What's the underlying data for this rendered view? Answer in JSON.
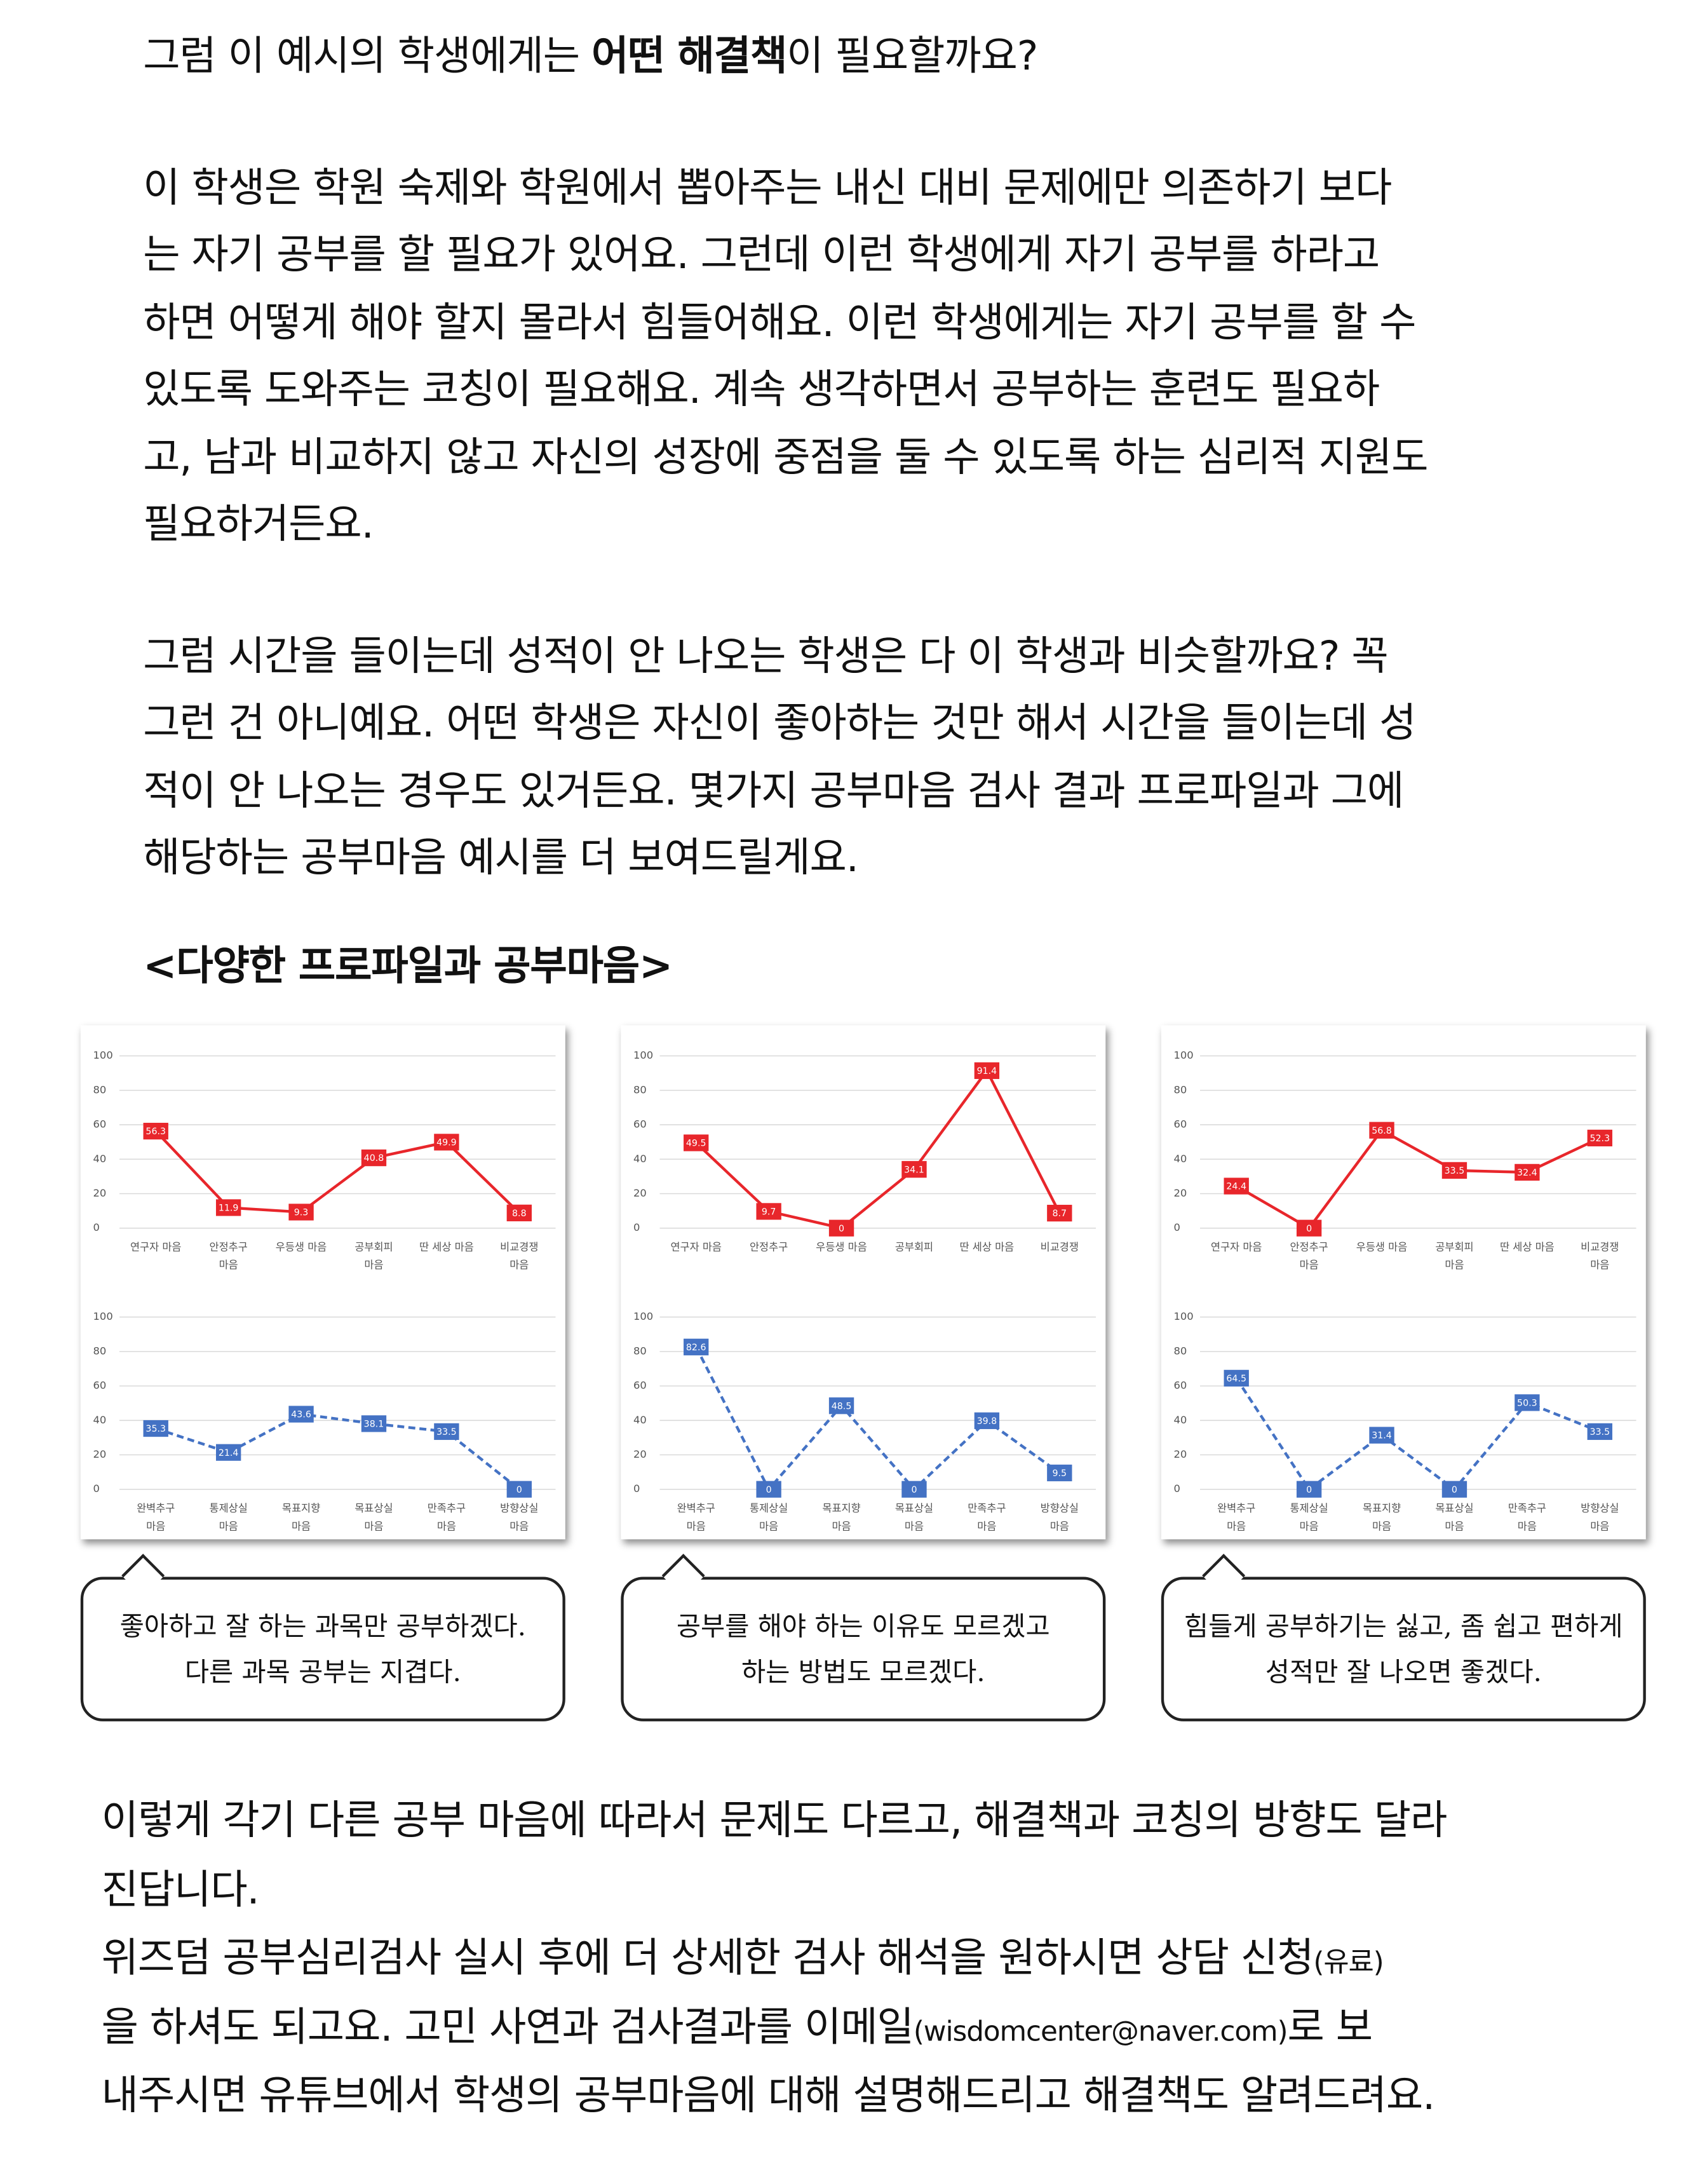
{
  "intro": {
    "before": "그럼 이 예시의 학생에게는 ",
    "bold": "어떤 해결책",
    "after": "이 필요할까요?"
  },
  "paragraph1": [
    "이 학생은 학원 숙제와 학원에서 뽑아주는 내신 대비 문제에만 의존하기 보다",
    "는 자기 공부를 할 필요가 있어요. 그런데 이런 학생에게 자기 공부를 하라고",
    "하면 어떻게 해야 할지 몰라서 힘들어해요. 이런 학생에게는 자기 공부를 할 수",
    "있도록 도와주는 코칭이 필요해요. 계속 생각하면서 공부하는 훈련도 필요하",
    "고, 남과 비교하지 않고 자신의 성장에 중점을 둘 수 있도록 하는 심리적 지원도",
    "필요하거든요."
  ],
  "paragraph2": [
    "그럼 시간을 들이는데 성적이 안 나오는 학생은 다 이 학생과 비슷할까요? 꼭",
    "그런 건 아니예요. 어떤 학생은 자신이 좋아하는 것만 해서 시간을 들이는데 성",
    "적이 안 나오는 경우도 있거든요. 몇가지 공부마음 검사 결과 프로파일과 그에",
    "해당하는 공부마음 예시를 더 보여드릴게요."
  ],
  "heading": "<다양한 프로파일과 공부마음>",
  "chart_data": [
    {
      "type": "line",
      "categories": [
        [
          "연구자 마음"
        ],
        [
          "안정추구",
          "마음"
        ],
        [
          "우등생 마음"
        ],
        [
          "공부회피",
          "마음"
        ],
        [
          "딴 세상 마음"
        ],
        [
          "비교경쟁",
          "마음"
        ]
      ],
      "series": [
        {
          "color": "#e8262b",
          "dashed": false,
          "values": [
            56.3,
            11.9,
            9.3,
            40.8,
            49.9,
            8.8
          ]
        }
      ],
      "ylim": [
        0,
        100
      ],
      "yticks": [
        0,
        20,
        40,
        60,
        80,
        100
      ],
      "grid": true
    },
    {
      "type": "line",
      "categories": [
        [
          "완벽추구",
          "마음"
        ],
        [
          "통제상실",
          "마음"
        ],
        [
          "목표지향",
          "마음"
        ],
        [
          "목표상실",
          "마음"
        ],
        [
          "만족추구",
          "마음"
        ],
        [
          "방향상실",
          "마음"
        ]
      ],
      "series": [
        {
          "color": "#4472c4",
          "dashed": true,
          "values": [
            35.3,
            21.4,
            43.6,
            38.1,
            33.5,
            0
          ]
        }
      ],
      "ylim": [
        0,
        100
      ],
      "yticks": [
        0,
        20,
        40,
        60,
        80,
        100
      ],
      "grid": true
    },
    {
      "type": "line",
      "categories": [
        [
          "연구자 마음"
        ],
        [
          "안정추구"
        ],
        [
          "우등생 마음"
        ],
        [
          "공부회피"
        ],
        [
          "딴 세상 마음"
        ],
        [
          "비교경쟁"
        ]
      ],
      "series": [
        {
          "color": "#e8262b",
          "dashed": false,
          "values": [
            49.5,
            9.7,
            0,
            34.1,
            91.4,
            8.7
          ]
        }
      ],
      "ylim": [
        0,
        100
      ],
      "yticks": [
        0,
        20,
        40,
        60,
        80,
        100
      ],
      "grid": true
    },
    {
      "type": "line",
      "categories": [
        [
          "완벽추구",
          "마음"
        ],
        [
          "통제상실",
          "마음"
        ],
        [
          "목표지향",
          "마음"
        ],
        [
          "목표상실",
          "마음"
        ],
        [
          "만족추구",
          "마음"
        ],
        [
          "방향상실",
          "마음"
        ]
      ],
      "series": [
        {
          "color": "#4472c4",
          "dashed": true,
          "values": [
            82.6,
            0,
            48.5,
            0,
            39.8,
            9.5
          ]
        }
      ],
      "ylim": [
        0,
        100
      ],
      "yticks": [
        0,
        20,
        40,
        60,
        80,
        100
      ],
      "grid": true
    },
    {
      "type": "line",
      "categories": [
        [
          "연구자 마음"
        ],
        [
          "안정추구",
          "마음"
        ],
        [
          "우등생 마음"
        ],
        [
          "공부회피",
          "마음"
        ],
        [
          "딴 세상 마음"
        ],
        [
          "비교경쟁",
          "마음"
        ]
      ],
      "series": [
        {
          "color": "#e8262b",
          "dashed": false,
          "values": [
            24.4,
            0,
            56.8,
            33.5,
            32.4,
            52.3
          ]
        }
      ],
      "ylim": [
        0,
        100
      ],
      "yticks": [
        0,
        20,
        40,
        60,
        80,
        100
      ],
      "grid": true
    },
    {
      "type": "line",
      "categories": [
        [
          "완벽추구",
          "마음"
        ],
        [
          "통제상실",
          "마음"
        ],
        [
          "목표지향",
          "마음"
        ],
        [
          "목표상실",
          "마음"
        ],
        [
          "만족추구",
          "마음"
        ],
        [
          "방향상실",
          "마음"
        ]
      ],
      "series": [
        {
          "color": "#4472c4",
          "dashed": true,
          "values": [
            64.5,
            0,
            31.4,
            0,
            50.3,
            33.5
          ]
        }
      ],
      "ylim": [
        0,
        100
      ],
      "yticks": [
        0,
        20,
        40,
        60,
        80,
        100
      ],
      "grid": true
    }
  ],
  "bubbles": [
    [
      "좋아하고 잘 하는 과목만 공부하겠다.",
      "다른 과목 공부는 지겹다."
    ],
    [
      "공부를 해야 하는 이유도 모르겠고",
      "하는 방법도 모르겠다."
    ],
    [
      "힘들게 공부하기는 싫고, 좀 쉽고 편하게",
      "성적만 잘 나오면 좋겠다."
    ]
  ],
  "closing": [
    [
      {
        "text": "이렇게 각기 다른 공부 마음에 따라서 문제도 다르고, 해결책과 코칭의 방향도 달라"
      }
    ],
    [
      {
        "text": "진답니다."
      }
    ],
    [
      {
        "text": "위즈덤 공부심리검사 실시 후에 더 상세한 검사 해석을 원하시면 상담 신청"
      },
      {
        "text": "(유료)",
        "small": true
      }
    ],
    [
      {
        "text": "을 하셔도 되고요. 고민 사연과 검사결과를 이메일"
      },
      {
        "text": "(wisdomcenter@naver.com)",
        "small": true
      },
      {
        "text": "로 보"
      }
    ],
    [
      {
        "text": "내주시면 유튜브에서 학생의 공부마음에 대해 설명해드리고 해결책도 알려드려요."
      }
    ]
  ]
}
